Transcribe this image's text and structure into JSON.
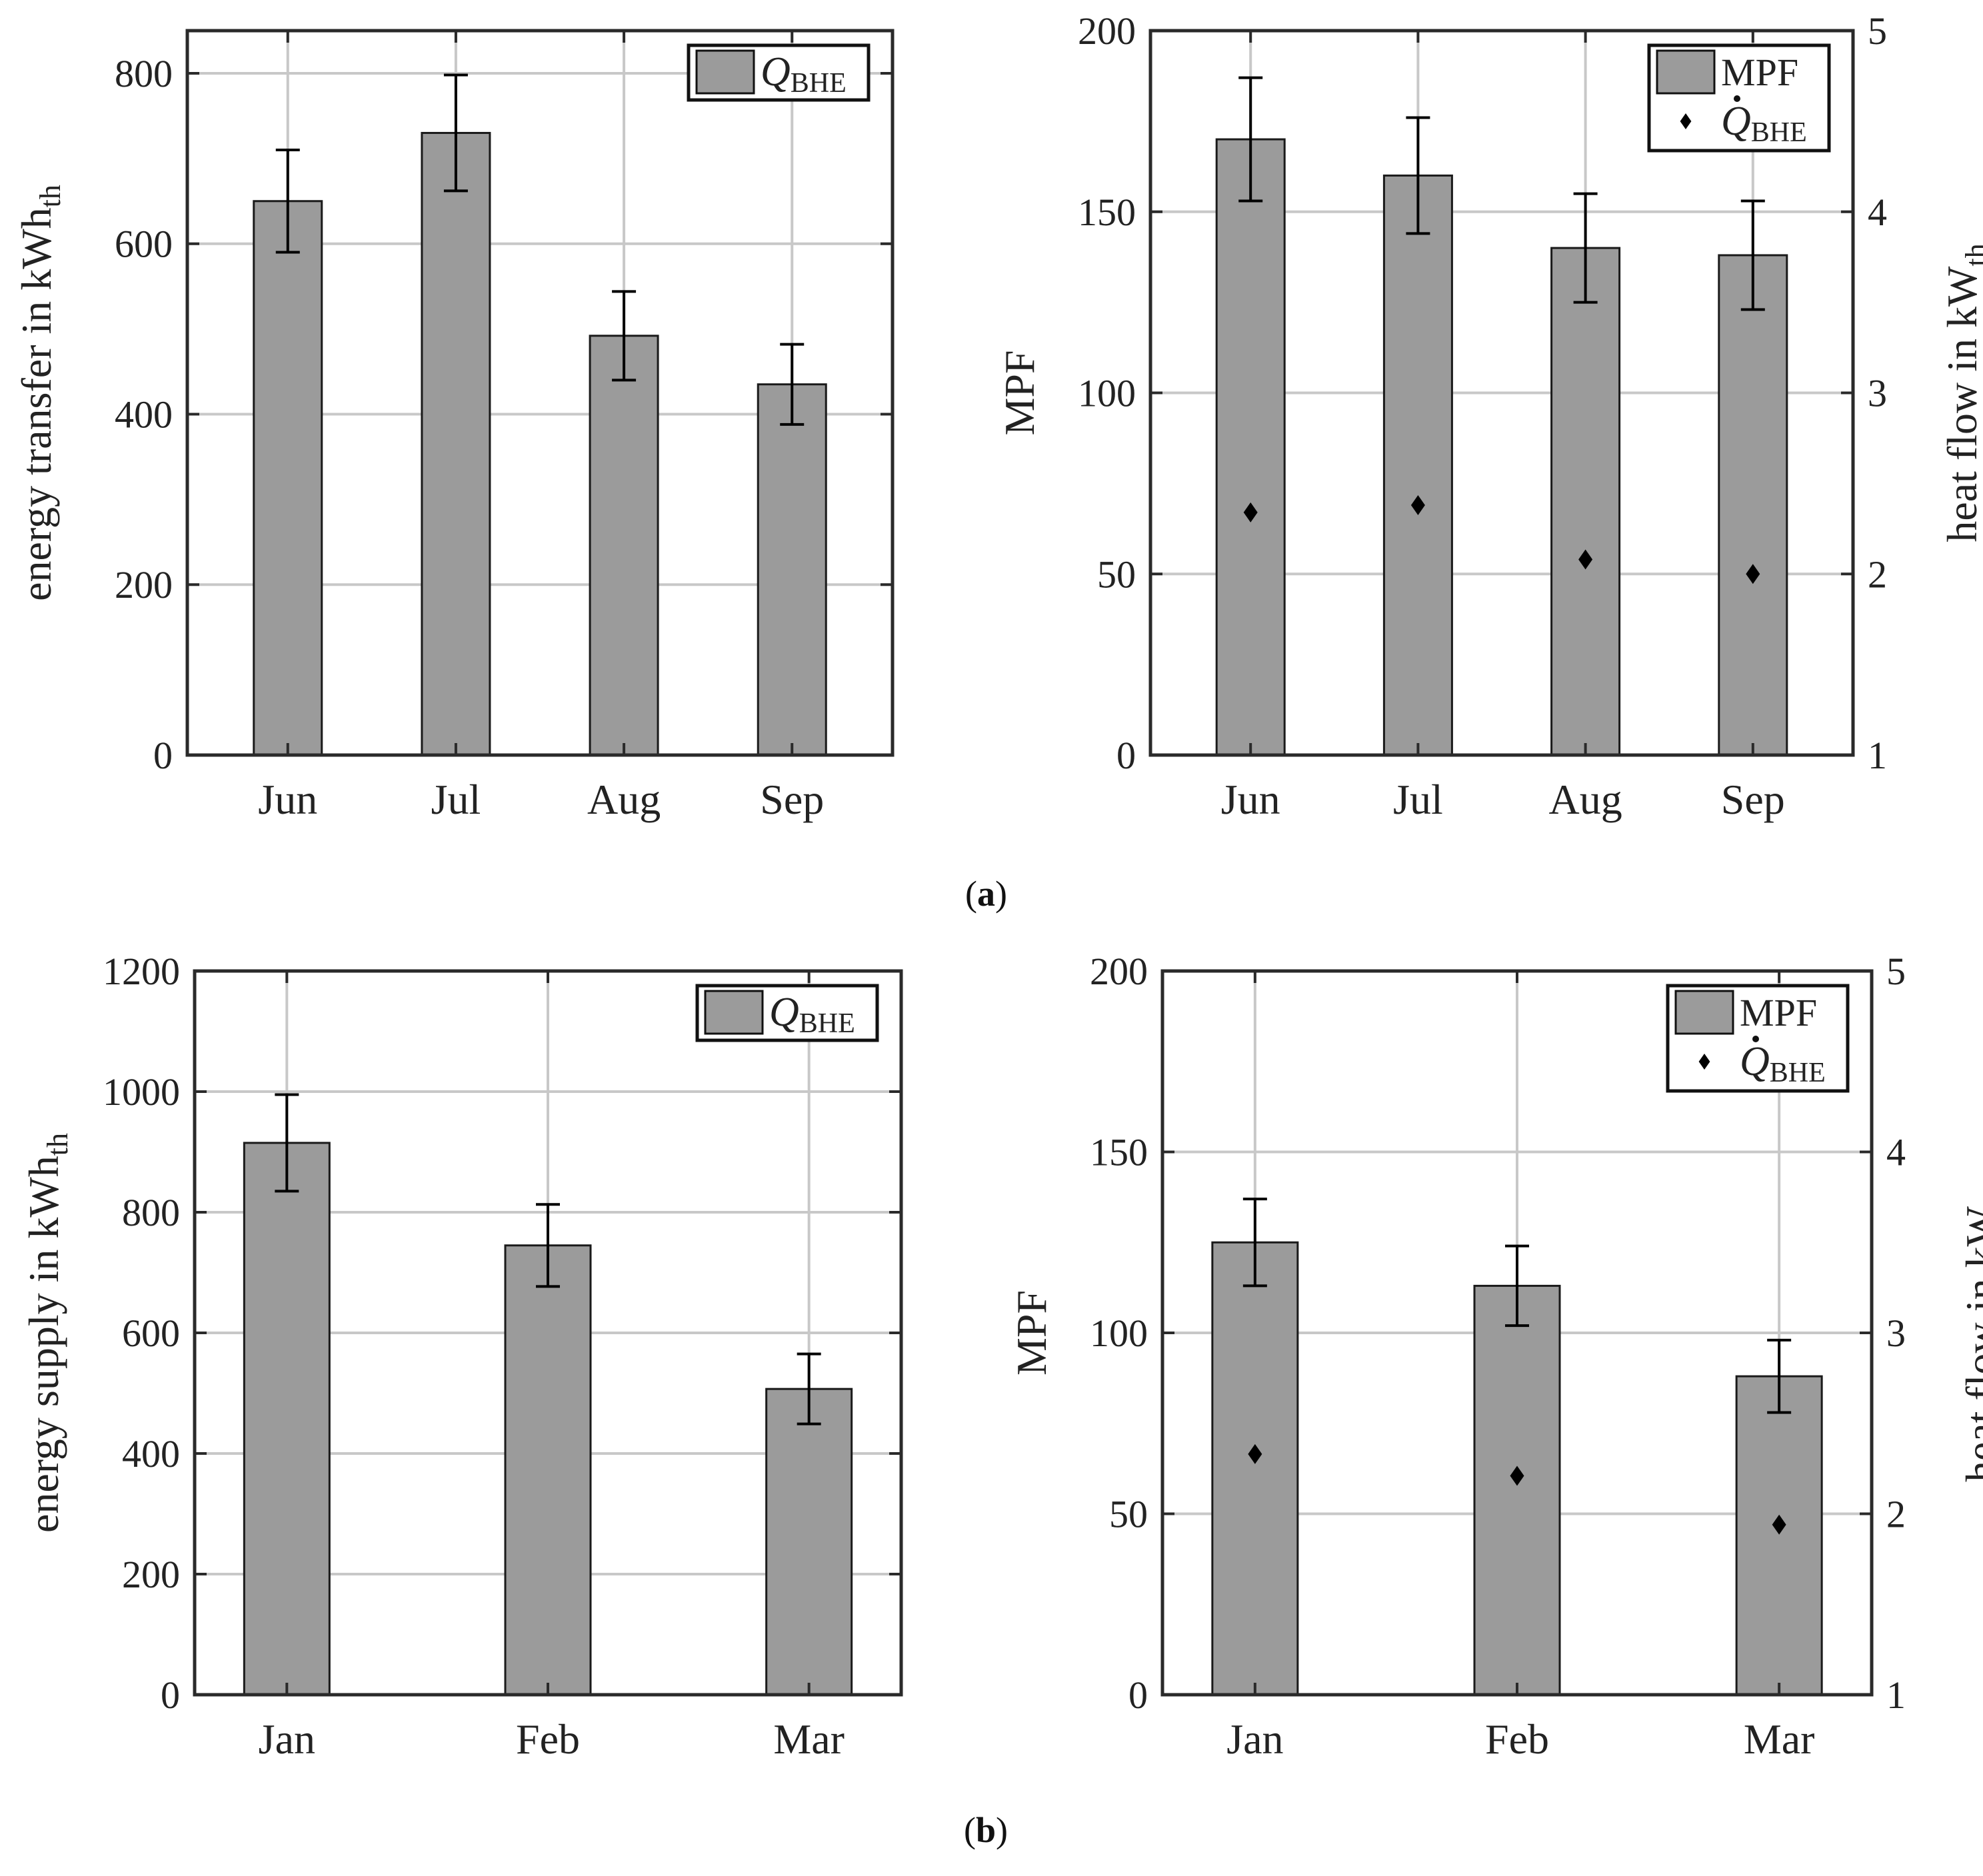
{
  "colors": {
    "bar_fill": "#9b9b9b",
    "bar_stroke": "#1a1a1a",
    "grid": "#c8c8c8",
    "axis": "#2a2a2a",
    "marker": "#000000"
  },
  "captions": {
    "a": {
      "open": "(",
      "letter": "a",
      "close": ")"
    },
    "b": {
      "open": "(",
      "letter": "b",
      "close": ")"
    }
  },
  "chart_data": [
    {
      "id": "a-left",
      "type": "bar",
      "categories": [
        "Jun",
        "Jul",
        "Aug",
        "Sep"
      ],
      "series": [
        {
          "name": "Q_BHE",
          "values": [
            650,
            730,
            492,
            435
          ],
          "err": [
            60,
            68,
            52,
            47
          ]
        }
      ],
      "ylabel": {
        "main": "energy transfer in kWh",
        "sub": "th"
      },
      "ylim": [
        0,
        850
      ],
      "yticks": [
        0,
        200,
        400,
        600,
        800
      ],
      "grid": true,
      "legend": {
        "location": "top-right",
        "entries": [
          {
            "kind": "bar",
            "symbol": "Q",
            "sub": "BHE",
            "dot": false
          }
        ]
      }
    },
    {
      "id": "a-right",
      "type": "bar",
      "categories": [
        "Jun",
        "Jul",
        "Aug",
        "Sep"
      ],
      "series": [
        {
          "name": "MPF",
          "values": [
            170,
            160,
            140,
            138
          ],
          "err": [
            17,
            16,
            15,
            15
          ]
        },
        {
          "name": "Q_dot_BHE",
          "axis": "right",
          "marker": "diamond",
          "values": [
            2.34,
            2.38,
            2.08,
            2.0
          ]
        }
      ],
      "ylabel": {
        "main": "MPF",
        "sub": ""
      },
      "y2label": {
        "main": "heat flow in kW",
        "sub": "th"
      },
      "ylim": [
        0,
        200
      ],
      "yticks": [
        0,
        50,
        100,
        150,
        200
      ],
      "y2lim": [
        1,
        5
      ],
      "y2ticks": [
        1,
        2,
        3,
        4,
        5
      ],
      "grid": true,
      "legend": {
        "location": "top-right",
        "entries": [
          {
            "kind": "bar",
            "label": "MPF"
          },
          {
            "kind": "marker",
            "symbol": "Q",
            "sub": "BHE",
            "dot": true
          }
        ]
      }
    },
    {
      "id": "b-left",
      "type": "bar",
      "categories": [
        "Jan",
        "Feb",
        "Mar"
      ],
      "series": [
        {
          "name": "Q_BHE",
          "values": [
            915,
            745,
            507
          ],
          "err": [
            80,
            68,
            58
          ]
        }
      ],
      "ylabel": {
        "main": "energy supply in kWh",
        "sub": "th"
      },
      "ylim": [
        0,
        1200
      ],
      "yticks": [
        0,
        200,
        400,
        600,
        800,
        1000,
        1200
      ],
      "grid": true,
      "legend": {
        "location": "top-right",
        "entries": [
          {
            "kind": "bar",
            "symbol": "Q",
            "sub": "BHE",
            "dot": false
          }
        ]
      }
    },
    {
      "id": "b-right",
      "type": "bar",
      "categories": [
        "Jan",
        "Feb",
        "Mar"
      ],
      "series": [
        {
          "name": "MPF",
          "values": [
            125,
            113,
            88
          ],
          "err": [
            12,
            11,
            10
          ]
        },
        {
          "name": "Q_dot_BHE",
          "axis": "right",
          "marker": "diamond",
          "values": [
            2.33,
            2.21,
            1.94
          ]
        }
      ],
      "ylabel": {
        "main": "MPF",
        "sub": ""
      },
      "y2label": {
        "main": "heat flow in kW",
        "sub": "th"
      },
      "ylim": [
        0,
        200
      ],
      "yticks": [
        0,
        50,
        100,
        150,
        200
      ],
      "y2lim": [
        1,
        5
      ],
      "y2ticks": [
        1,
        2,
        3,
        4,
        5
      ],
      "grid": true,
      "legend": {
        "location": "top-right",
        "entries": [
          {
            "kind": "bar",
            "label": "MPF"
          },
          {
            "kind": "marker",
            "symbol": "Q",
            "sub": "BHE",
            "dot": true
          }
        ]
      }
    }
  ]
}
